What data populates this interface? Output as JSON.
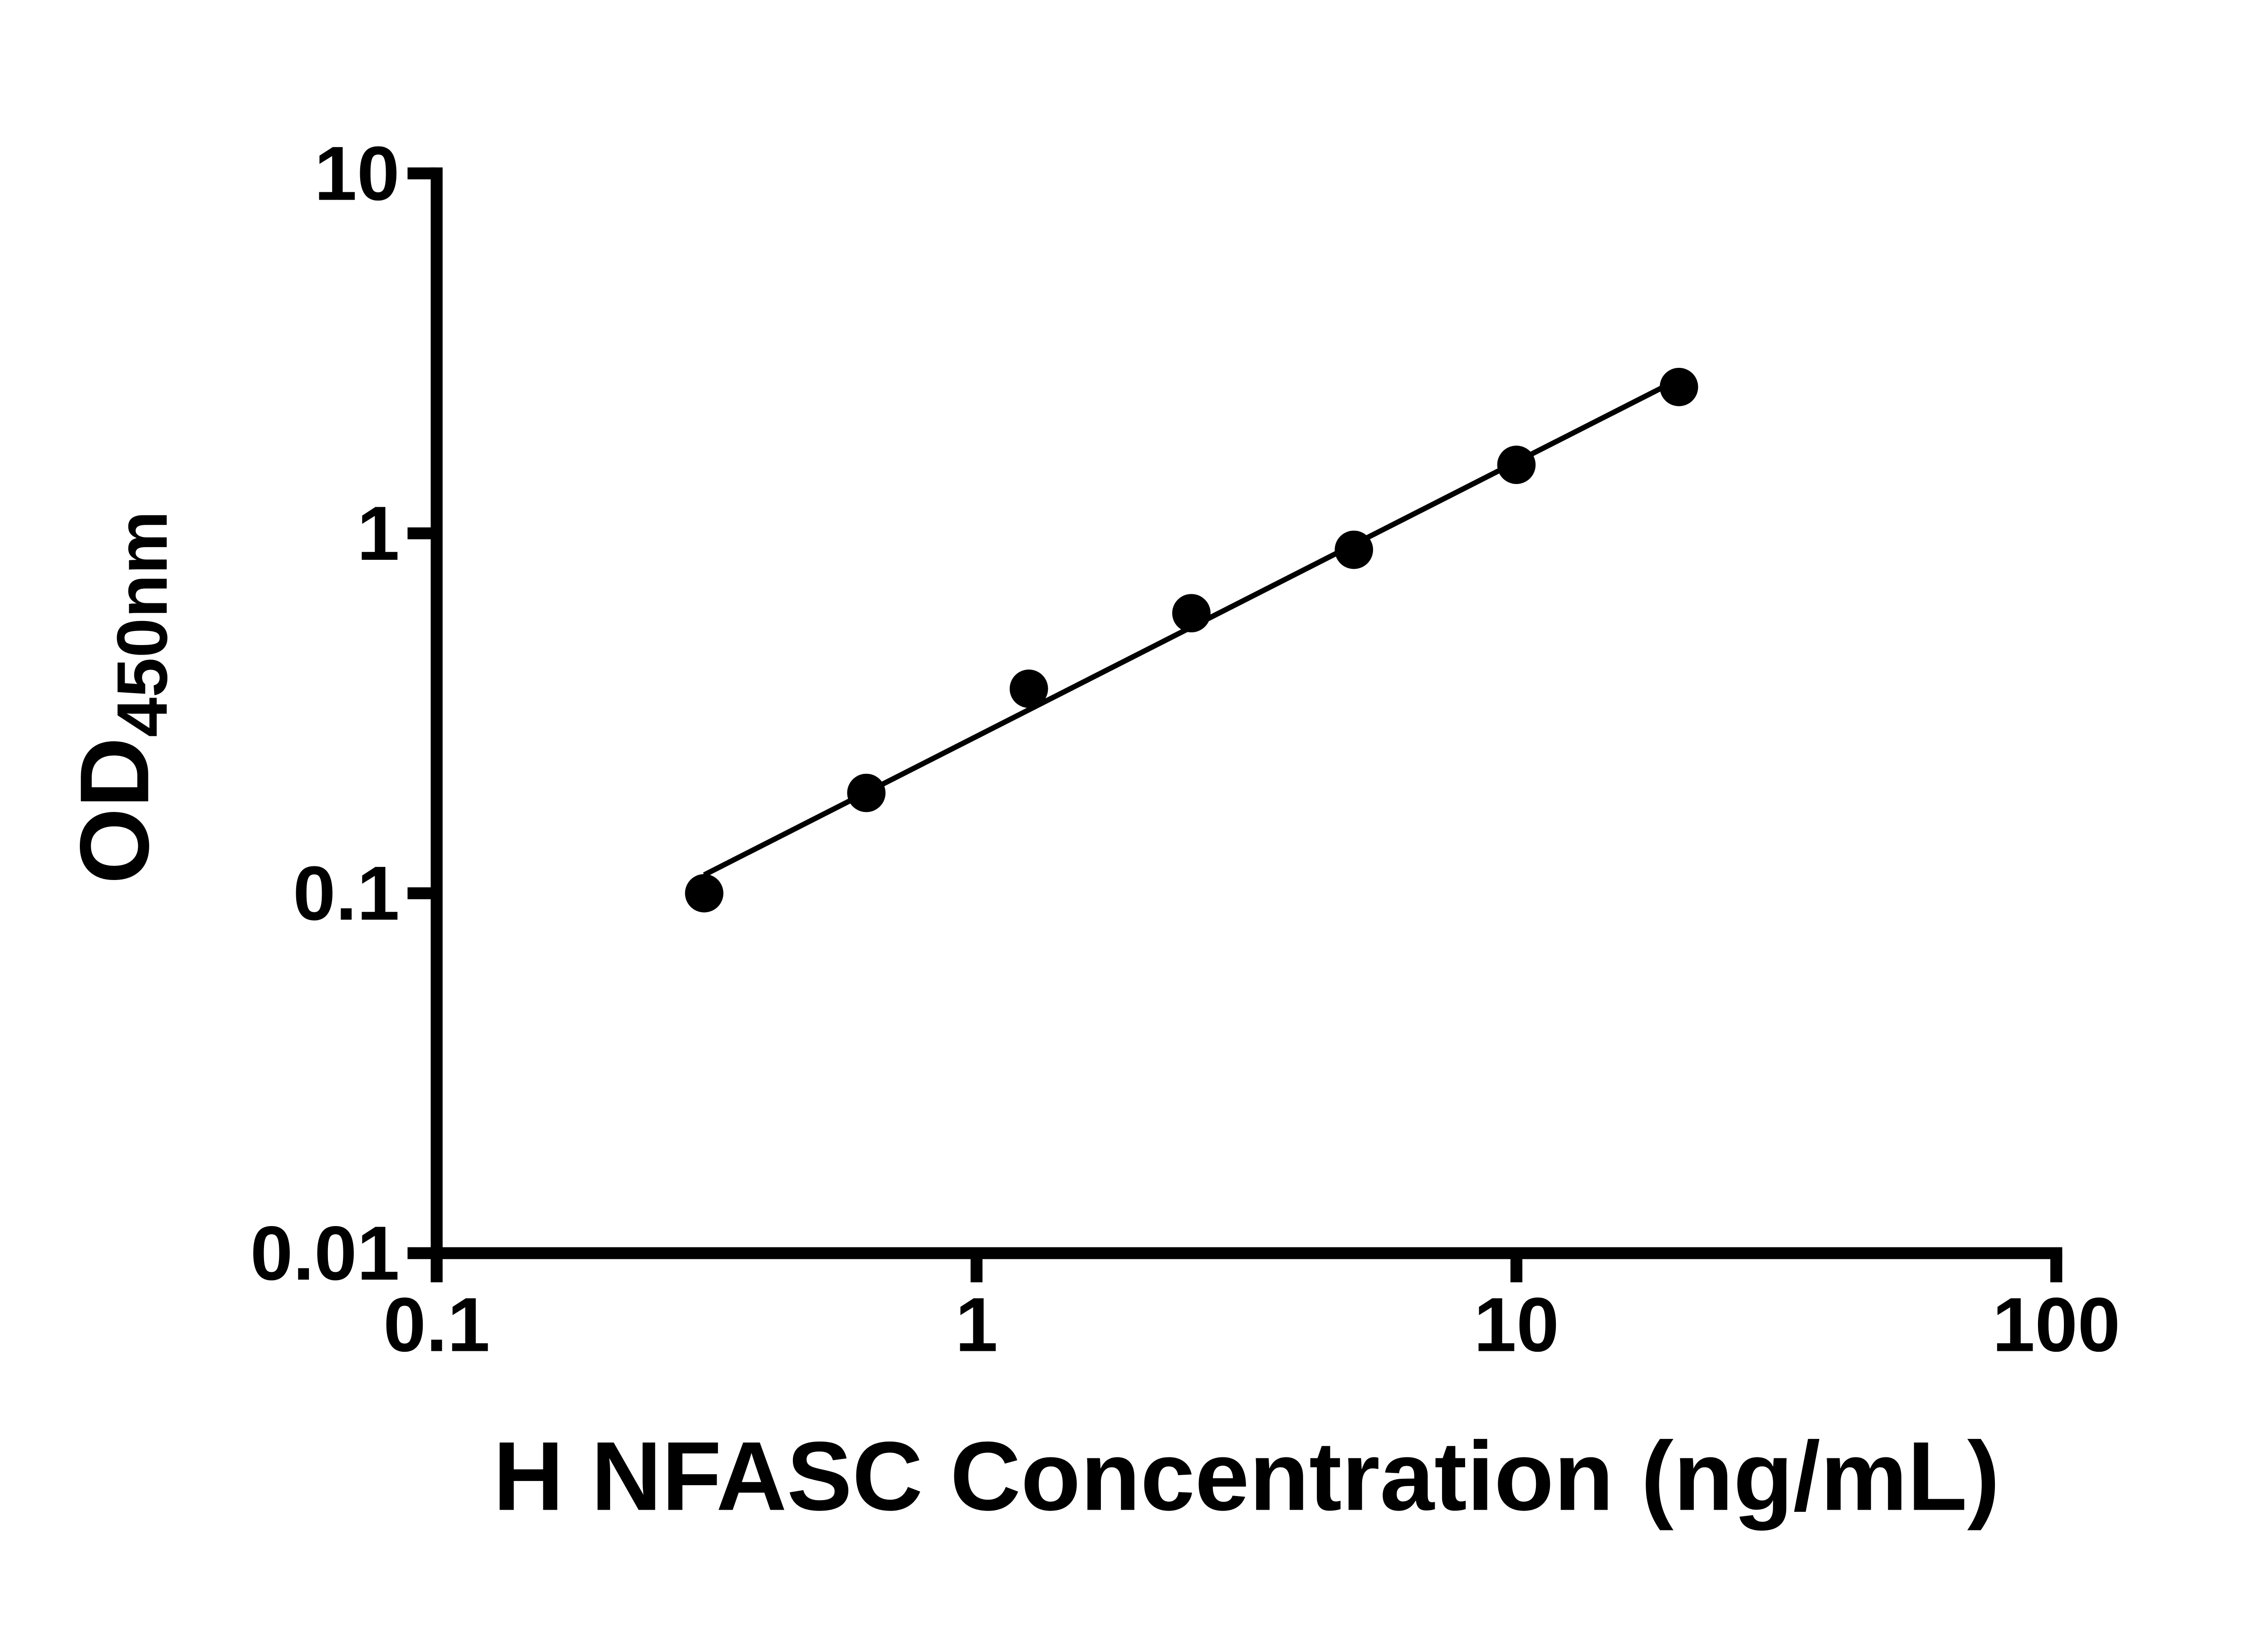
{
  "chart_data": {
    "type": "scatter",
    "title": "",
    "xlabel": "H NFASC Concentration (ng/mL)",
    "ylabel_main": "OD",
    "ylabel_sub": "450nm",
    "x_scale": "log",
    "y_scale": "log",
    "xlim": [
      0.1,
      100
    ],
    "ylim": [
      0.01,
      10
    ],
    "x_ticks": [
      0.1,
      1,
      10,
      100
    ],
    "x_tick_labels": [
      "0.1",
      "1",
      "10",
      "100"
    ],
    "y_ticks": [
      0.01,
      0.1,
      1,
      10
    ],
    "y_tick_labels": [
      "0.01",
      "0.1",
      "1",
      "10"
    ],
    "grid": "off",
    "legend": "none",
    "series": [
      {
        "marker": "circle",
        "trendline": "linear-fit-loglog",
        "x": [
          0.313,
          0.625,
          1.25,
          2.5,
          5,
          10,
          20
        ],
        "y": [
          0.1,
          0.19,
          0.37,
          0.6,
          0.9,
          1.55,
          2.55
        ]
      }
    ],
    "colors": {
      "background": "#ffffff",
      "axis": "#000000",
      "text": "#000000",
      "marker": "#000000",
      "line": "#000000"
    }
  }
}
